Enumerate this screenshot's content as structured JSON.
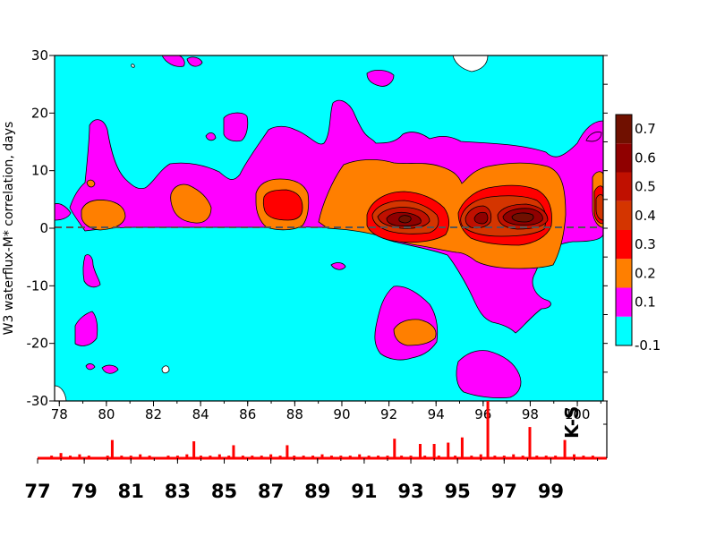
{
  "chart_data": [
    {
      "type": "heatmap",
      "ylabel": "W3 waterflux-M* correlation, days",
      "xlim": [
        77.8,
        101.1
      ],
      "ylim": [
        -30,
        30
      ],
      "x_ticks": [
        "78",
        "80",
        "82",
        "84",
        "86",
        "88",
        "90",
        "92",
        "94",
        "96",
        "98",
        "100"
      ],
      "y_ticks": [
        "30",
        "20",
        "10",
        "0",
        "-10",
        "-20",
        "-30"
      ],
      "reference_line": {
        "y": 0,
        "style": "dashed"
      },
      "colorbar": {
        "levels": [
          "-0.1",
          "0.1",
          "0.2",
          "0.3",
          "0.4",
          "0.5",
          "0.6",
          "0.7"
        ],
        "colors": [
          "#00ffff",
          "#ff00ff",
          "#ff7f00",
          "#ff0000",
          "#d43500",
          "#c01000",
          "#900000",
          "#701000"
        ]
      },
      "regions": [
        {
          "label": "fill",
          "level": 0.1,
          "x_range": [
            79.2,
            101
          ],
          "y_range": [
            -5,
            12
          ]
        },
        {
          "label": "max",
          "level": 0.7,
          "x_center": 92.6,
          "y_center": 1.5
        },
        {
          "label": "max",
          "level": 0.7,
          "x_center": 97.8,
          "y_center": 2
        }
      ]
    },
    {
      "type": "bar",
      "xlabel": "",
      "xlim": [
        77,
        101.4
      ],
      "x_ticks": [
        "77",
        "79",
        "81",
        "83",
        "85",
        "87",
        "89",
        "91",
        "93",
        "95",
        "97",
        "99"
      ],
      "annotation": "K-S",
      "color": "#ff0000",
      "x": [
        77.2,
        77.6,
        78.0,
        78.4,
        78.8,
        79.2,
        79.6,
        80.0,
        80.2,
        80.6,
        81.0,
        81.4,
        81.8,
        82.2,
        82.6,
        83.0,
        83.4,
        83.7,
        84.0,
        84.4,
        84.8,
        85.2,
        85.4,
        85.8,
        86.2,
        86.6,
        87.0,
        87.4,
        87.7,
        88.0,
        88.4,
        88.8,
        89.2,
        89.6,
        90.0,
        90.4,
        90.8,
        91.2,
        91.6,
        92.0,
        92.3,
        92.6,
        93.0,
        93.4,
        93.6,
        94.0,
        94.2,
        94.6,
        94.9,
        95.2,
        95.6,
        96.0,
        96.3,
        96.6,
        97.0,
        97.4,
        97.8,
        98.1,
        98.4,
        98.8,
        99.2,
        99.6,
        100.0,
        100.4,
        100.8,
        101.2
      ],
      "values": [
        0.5,
        1,
        2,
        1,
        1.5,
        1,
        0.5,
        1,
        7,
        1,
        1,
        1.5,
        1,
        0.5,
        1,
        1,
        1.5,
        6.5,
        1,
        1,
        1.5,
        1,
        5,
        1,
        1,
        1,
        1.5,
        1,
        5,
        1,
        1,
        1,
        1.5,
        1,
        1,
        1,
        1.5,
        1,
        1,
        1,
        7.5,
        1,
        1,
        5.5,
        1,
        5.5,
        1,
        6,
        1,
        8,
        1,
        1.5,
        22,
        1,
        1,
        1.5,
        1,
        12,
        1,
        1,
        1,
        7,
        1.5,
        1,
        1,
        0.5
      ]
    }
  ]
}
